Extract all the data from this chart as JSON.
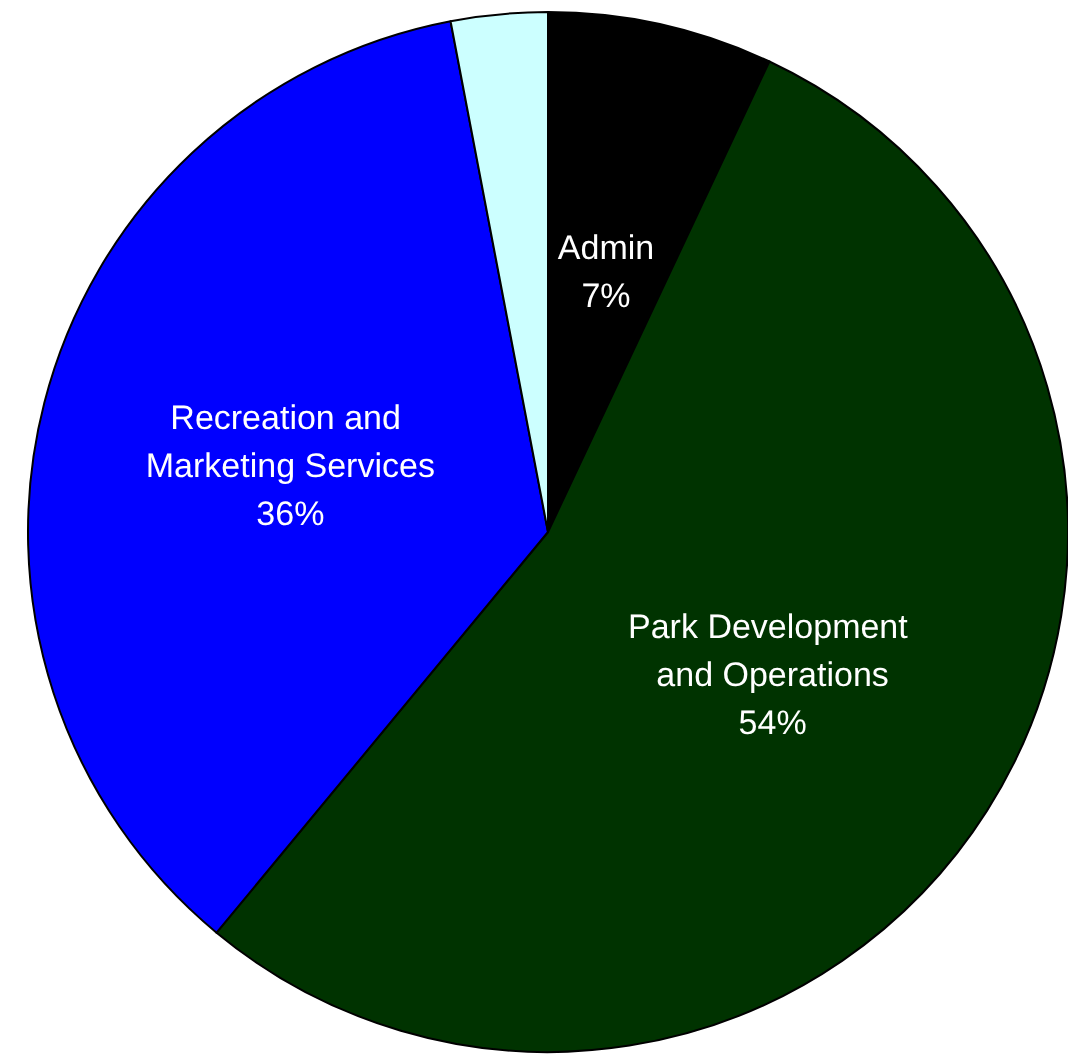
{
  "chart_data": {
    "type": "pie",
    "categories": [
      "Admin",
      "Park Development and Operations",
      "Recreation and Marketing Services",
      null
    ],
    "values": [
      7,
      54,
      36,
      3
    ],
    "value_labels": [
      "7%",
      "54%",
      "36%",
      null
    ],
    "colors": [
      "#000000",
      "#003300",
      "#0000ff",
      "#ccffff"
    ],
    "legend": false
  }
}
